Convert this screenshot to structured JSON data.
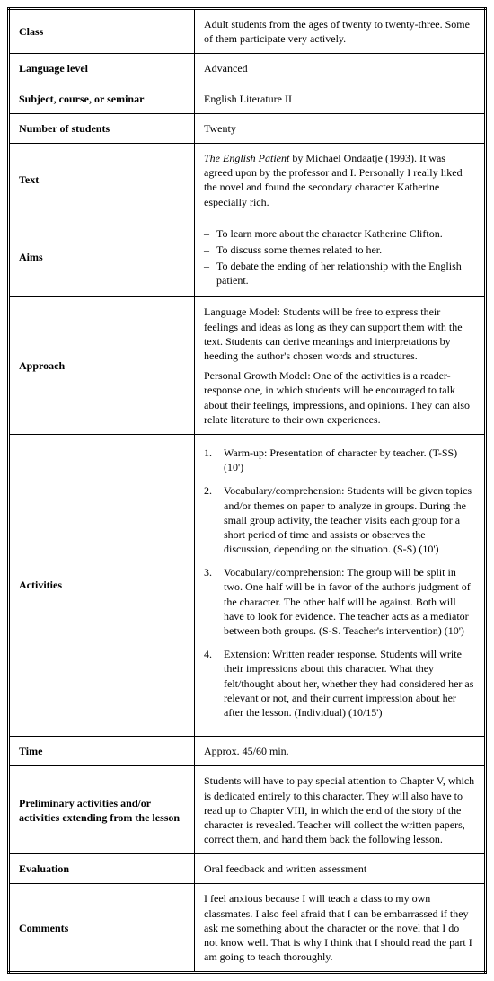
{
  "rows": {
    "class": {
      "label": "Class",
      "value": "Adult students from the ages of twenty to twenty-three. Some of them participate very actively."
    },
    "level": {
      "label": "Language level",
      "value": "Advanced"
    },
    "subject": {
      "label": "Subject, course, or seminar",
      "value": "English Literature II"
    },
    "students": {
      "label": "Number of students",
      "value": "Twenty"
    },
    "text": {
      "label": "Text",
      "title": "The English Patient",
      "rest": " by Michael Ondaatje (1993). It was agreed upon by the professor and I. Personally I really liked the novel and found the secondary character Katherine especially rich."
    },
    "aims": {
      "label": "Aims",
      "items": [
        "To learn more about the character Katherine Clifton.",
        "To discuss some themes related to her.",
        "To debate the ending of her relationship with the English patient."
      ]
    },
    "approach": {
      "label": "Approach",
      "p1": "Language Model: Students will be free to express their feelings and ideas as long as they can support them with the text. Students can derive meanings and interpretations by heeding the author's chosen words and structures.",
      "p2": "Personal Growth Model: One of the activities is a reader-response one, in which students will be encouraged to talk about their feelings, impressions, and opinions. They can also relate literature to their own experiences."
    },
    "activities": {
      "label": "Activities",
      "items": [
        "Warm-up: Presentation of character by teacher. (T-SS) (10')",
        "Vocabulary/comprehension: Students will be given topics and/or themes on paper to analyze in groups. During the small group activity, the teacher visits each group for a short period of time and assists or observes the discussion, depending on the situation. (S-S) (10')",
        "Vocabulary/comprehension: The group will be split in two. One half will be in favor of the author's judgment of the character. The other half will be against. Both will have to look for evidence. The teacher acts as a mediator between both groups. (S-S. Teacher's intervention) (10')",
        "Extension: Written reader response. Students will write their impressions about this character. What they felt/thought about her, whether they had considered her as relevant or not, and their current impression about her after the lesson. (Individual) (10/15')"
      ]
    },
    "time": {
      "label": "Time",
      "value": "Approx. 45/60 min."
    },
    "prelim": {
      "label": "Preliminary activities and/or activities extending from the lesson",
      "value": "Students will have to pay special attention to Chapter V, which is dedicated entirely to this character. They will also have to read up to Chapter VIII, in which the end of the story of the character is revealed. Teacher will collect the written papers, correct them, and hand them back the following lesson."
    },
    "evaluation": {
      "label": "Evaluation",
      "value": "Oral feedback and written assessment"
    },
    "comments": {
      "label": "Comments",
      "value": "I feel anxious because I will teach a class to my own classmates. I also feel afraid that I can be embarrassed if they ask me something about the character or the novel that I do not know well. That is why I think that I should read the part I am going to teach thoroughly."
    }
  }
}
